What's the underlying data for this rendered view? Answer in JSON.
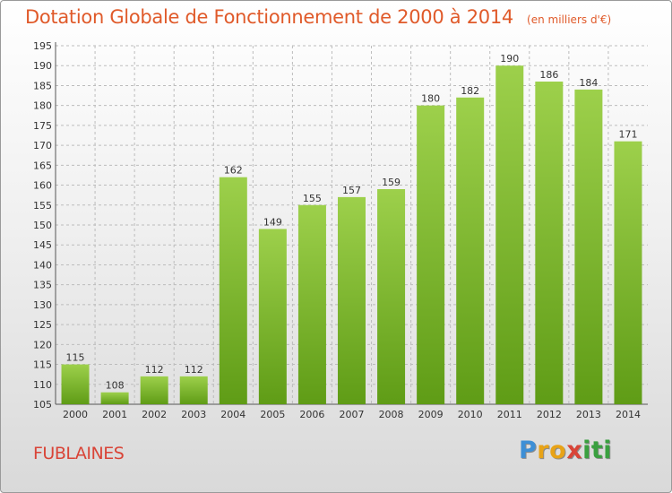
{
  "title": "Dotation Globale de Fonctionnement de 2000 à 2014",
  "subtitle": "(en milliers d'€)",
  "commune": "FUBLAINES",
  "logo": {
    "letters": [
      "P",
      "r",
      "o",
      "x",
      "i",
      "t",
      "i"
    ],
    "colors": [
      "#3d8fd6",
      "#e8a317",
      "#e8a317",
      "#d94437",
      "#3aa040",
      "#3aa040",
      "#3aa040"
    ]
  },
  "colors": {
    "bar_top": "#9dd04b",
    "bar_bottom": "#5f9c16",
    "title": "#e05a2a",
    "commune": "#d94437"
  },
  "chart_data": {
    "type": "bar",
    "title": "Dotation Globale de Fonctionnement de 2000 à 2014",
    "subtitle": "(en milliers d'€)",
    "categories": [
      "2000",
      "2001",
      "2002",
      "2003",
      "2004",
      "2005",
      "2006",
      "2007",
      "2008",
      "2009",
      "2010",
      "2011",
      "2012",
      "2013",
      "2014"
    ],
    "values": [
      115,
      108,
      112,
      112,
      162,
      149,
      155,
      157,
      159,
      180,
      182,
      190,
      186,
      184,
      171
    ],
    "ylim": [
      105,
      195
    ],
    "yticks": [
      105,
      110,
      115,
      120,
      125,
      130,
      135,
      140,
      145,
      150,
      155,
      160,
      165,
      170,
      175,
      180,
      185,
      190,
      195
    ],
    "grid": true,
    "data_labels": true
  }
}
